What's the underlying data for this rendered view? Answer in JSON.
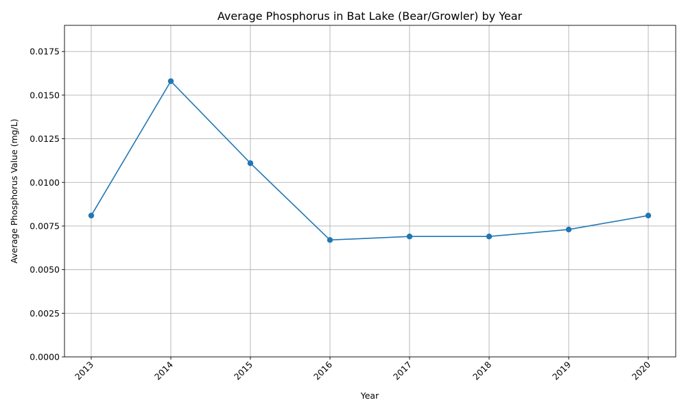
{
  "chart_data": {
    "type": "line",
    "title": "Average Phosphorus in Bat Lake (Bear/Growler) by Year",
    "xlabel": "Year",
    "ylabel": "Average Phosphorus Value (mg/L)",
    "categories": [
      "2013",
      "2014",
      "2015",
      "2016",
      "2017",
      "2018",
      "2019",
      "2020"
    ],
    "series": [
      {
        "values": [
          0.0081,
          0.0158,
          0.0111,
          0.0067,
          0.0069,
          0.0069,
          0.0073,
          0.0081
        ],
        "color": "#1f77b4",
        "marker": "circle"
      }
    ],
    "ylim": [
      0,
      0.019
    ],
    "yticks": [
      0.0,
      0.0025,
      0.005,
      0.0075,
      0.01,
      0.0125,
      0.015,
      0.0175
    ],
    "ytick_labels": [
      "0.0000",
      "0.0025",
      "0.0050",
      "0.0075",
      "0.0100",
      "0.0125",
      "0.0150",
      "0.0175"
    ],
    "xtick_rotation": -45,
    "grid": true
  }
}
